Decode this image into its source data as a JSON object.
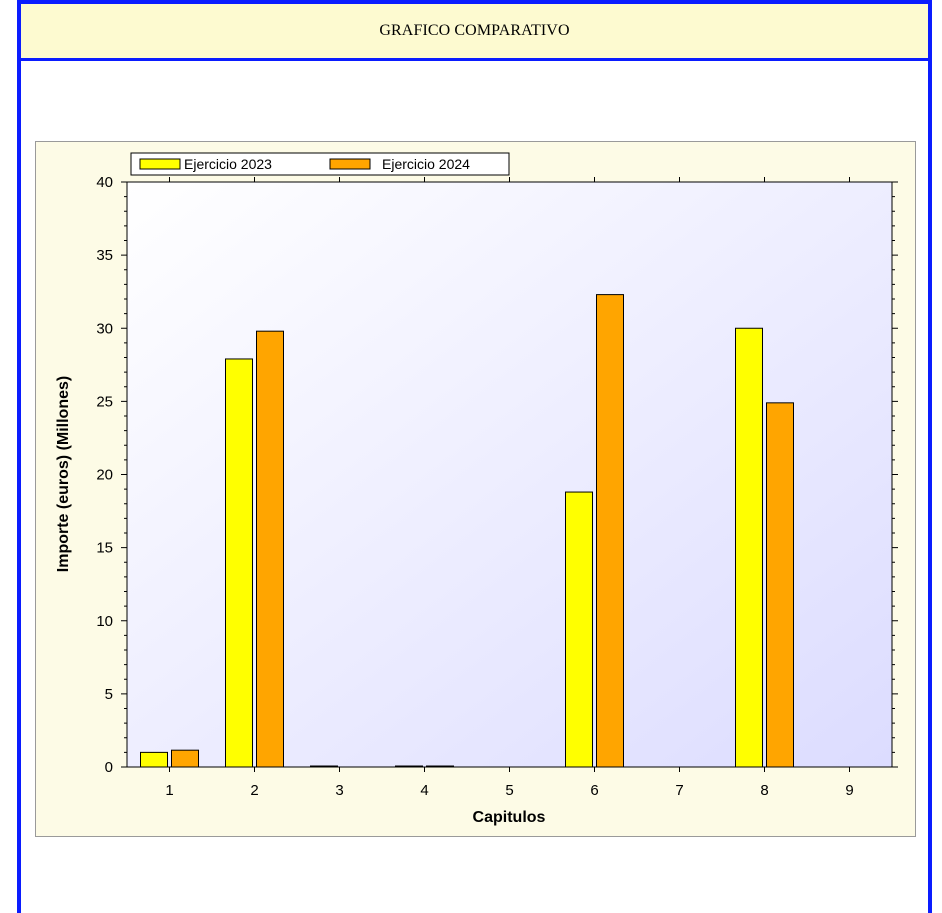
{
  "header": {
    "title": "GRAFICO COMPARATIVO"
  },
  "chart_data": {
    "type": "bar",
    "categories": [
      "1",
      "2",
      "3",
      "4",
      "5",
      "6",
      "7",
      "8",
      "9"
    ],
    "series": [
      {
        "name": "Ejercicio 2023",
        "color": "#ffff00",
        "values": [
          1.0,
          27.9,
          0.02,
          0.02,
          0,
          18.8,
          0,
          30.0,
          0
        ]
      },
      {
        "name": "Ejercicio 2024",
        "color": "#ffa500",
        "values": [
          1.15,
          29.8,
          0,
          0.02,
          0,
          32.3,
          0,
          24.9,
          0
        ]
      }
    ],
    "xlabel": "Capitulos",
    "ylabel": "Importe (euros) (Millones)",
    "ylim": [
      0,
      40
    ],
    "yticks": [
      0,
      5,
      10,
      15,
      20,
      25,
      30,
      35,
      40
    ],
    "legend_position": "top-left",
    "grid": false,
    "plot_background": [
      "#ffffff",
      "#dcdcff"
    ]
  }
}
